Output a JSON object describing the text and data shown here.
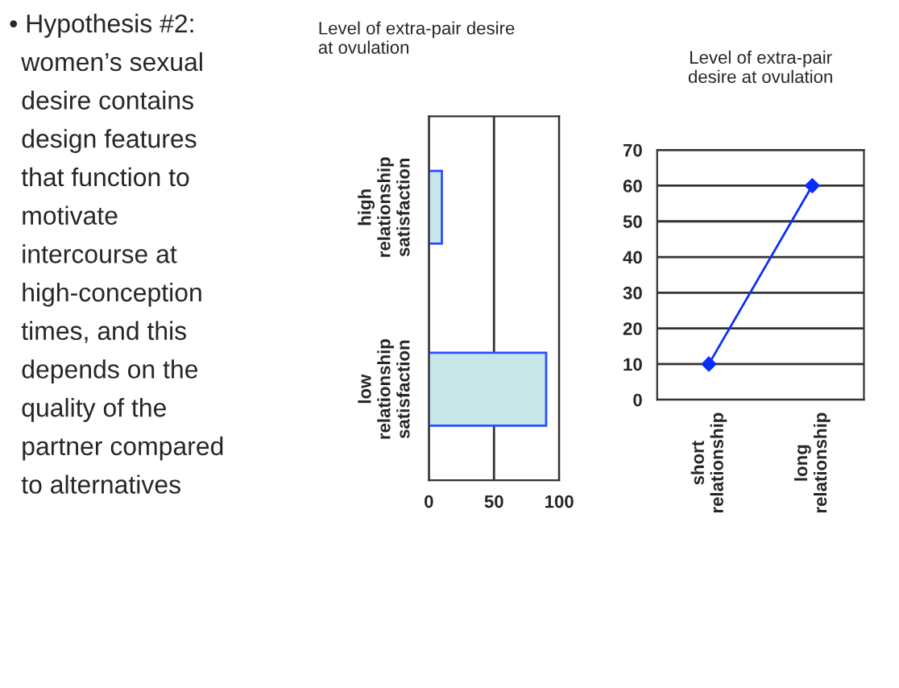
{
  "chart_data": [
    {
      "type": "other",
      "annotations": [
        "• Hypothesis #2:",
        "women’s sexual",
        "desire contains",
        "design features",
        "that function to",
        "motivate",
        "intercourse at",
        "high-conception",
        "times, and this",
        "depends on the",
        "quality of the",
        "partner compared",
        "to alternatives"
      ]
    },
    {
      "type": "bar",
      "title": "Level of extra-pair desire\nat ovulation",
      "orientation": "horizontal",
      "categories": [
        "high\nrelationship\nsatisfaction",
        "low\nrelationship\nsatisfaction"
      ],
      "values": [
        10,
        90
      ],
      "color": "#c6e6e8",
      "xlim": [
        0,
        100
      ],
      "xticks": [
        0,
        50,
        100
      ],
      "grid": "x"
    },
    {
      "type": "line",
      "title": "Level of extra-pair\ndesire at ovulation",
      "categories": [
        "short\nrelationship",
        "long\nrelationship"
      ],
      "series": [
        {
          "color": "#0a2dff",
          "values": [
            10,
            60
          ]
        }
      ],
      "marker": "diamond",
      "ylim": [
        0,
        70
      ],
      "yticks": [
        0,
        10,
        20,
        30,
        40,
        50,
        60,
        70
      ],
      "grid": "y"
    }
  ]
}
